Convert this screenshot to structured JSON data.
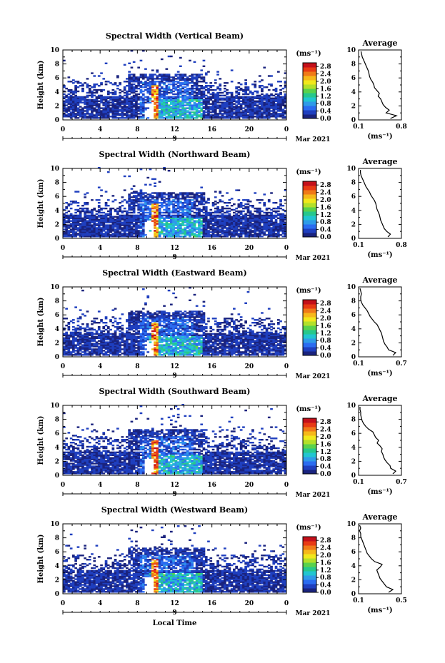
{
  "chart_data": [
    {
      "type": "heatmap",
      "title": "Spectral Width (Vertical Beam)",
      "ylabel": "Height (km)",
      "x_ticks": [
        "0",
        "4",
        "8",
        "12",
        "16",
        "20",
        "0"
      ],
      "x_date_label": "9",
      "x_month_label": "Mar 2021",
      "xlim": [
        0,
        24
      ],
      "ylim": [
        0,
        10
      ],
      "colorbar": {
        "unit": "(ms⁻¹)",
        "ticks": [
          "0.0",
          "0.4",
          "0.8",
          "1.2",
          "1.6",
          "2.0",
          "2.4",
          "2.8"
        ],
        "range": [
          0,
          3.0
        ]
      },
      "average": {
        "title": "Average",
        "xlabel": "(ms⁻¹)",
        "xticks": [
          "0.1",
          "0.8"
        ],
        "xlim": [
          0.1,
          0.8
        ],
        "height": [
          0.2,
          0.6,
          1.0,
          1.4,
          1.8,
          2.2,
          2.6,
          3.0,
          3.4,
          3.8,
          4.2,
          4.6,
          5.0,
          5.4,
          5.8,
          6.2,
          6.6,
          7.0,
          7.4,
          7.8,
          8.2,
          8.6,
          9.0,
          9.4,
          9.8
        ],
        "value": [
          0.62,
          0.72,
          0.55,
          0.6,
          0.54,
          0.5,
          0.48,
          0.46,
          0.42,
          0.44,
          0.4,
          0.36,
          0.35,
          0.33,
          0.3,
          0.28,
          0.27,
          0.26,
          0.24,
          0.22,
          0.2,
          0.18,
          0.16,
          0.15,
          0.14
        ]
      }
    },
    {
      "type": "heatmap",
      "title": "Spectral Width (Northward Beam)",
      "ylabel": "Height (km)",
      "x_ticks": [
        "0",
        "4",
        "8",
        "12",
        "16",
        "20",
        "0"
      ],
      "x_date_label": "9",
      "x_month_label": "Mar 2021",
      "xlim": [
        0,
        24
      ],
      "ylim": [
        0,
        10
      ],
      "colorbar": {
        "unit": "(ms⁻¹)",
        "ticks": [
          "0.0",
          "0.4",
          "0.8",
          "1.2",
          "1.6",
          "2.0",
          "2.4",
          "2.8"
        ],
        "range": [
          0,
          3.0
        ]
      },
      "average": {
        "title": "Average",
        "xlabel": "(ms⁻¹)",
        "xticks": [
          "0.1",
          "0.8"
        ],
        "xlim": [
          0.1,
          0.8
        ],
        "height": [
          0.2,
          0.6,
          1.0,
          1.4,
          1.8,
          2.2,
          2.6,
          3.0,
          3.4,
          3.8,
          4.2,
          4.6,
          5.0,
          5.4,
          5.8,
          6.2,
          6.6,
          7.0,
          7.4,
          7.8,
          8.2,
          8.6,
          9.0,
          9.4,
          9.8
        ],
        "value": [
          0.58,
          0.62,
          0.56,
          0.52,
          0.5,
          0.48,
          0.46,
          0.45,
          0.44,
          0.42,
          0.4,
          0.39,
          0.38,
          0.36,
          0.33,
          0.3,
          0.28,
          0.25,
          0.22,
          0.2,
          0.18,
          0.16,
          0.14,
          0.13,
          0.13
        ]
      }
    },
    {
      "type": "heatmap",
      "title": "Spectral Width (Eastward Beam)",
      "ylabel": "Height (km)",
      "x_ticks": [
        "0",
        "4",
        "8",
        "12",
        "16",
        "20",
        "0"
      ],
      "x_date_label": "9",
      "x_month_label": "Mar 2021",
      "xlim": [
        0,
        24
      ],
      "ylim": [
        0,
        10
      ],
      "colorbar": {
        "unit": "(ms⁻¹)",
        "ticks": [
          "0.0",
          "0.4",
          "0.8",
          "1.2",
          "1.6",
          "2.0",
          "2.4",
          "2.8"
        ],
        "range": [
          0,
          3.0
        ]
      },
      "average": {
        "title": "Average",
        "xlabel": "(ms⁻¹)",
        "xticks": [
          "0.1",
          "0.7"
        ],
        "xlim": [
          0.1,
          0.7
        ],
        "height": [
          0.2,
          0.6,
          1.0,
          1.4,
          1.8,
          2.2,
          2.6,
          3.0,
          3.4,
          3.8,
          4.2,
          4.6,
          5.0,
          5.4,
          5.8,
          6.2,
          6.6,
          7.0,
          7.4,
          7.8,
          8.2,
          8.6,
          9.0,
          9.4,
          9.8
        ],
        "value": [
          0.58,
          0.62,
          0.52,
          0.5,
          0.47,
          0.45,
          0.44,
          0.43,
          0.42,
          0.4,
          0.38,
          0.36,
          0.32,
          0.29,
          0.26,
          0.24,
          0.22,
          0.19,
          0.16,
          0.14,
          0.13,
          0.13,
          0.14,
          0.13,
          0.12
        ]
      }
    },
    {
      "type": "heatmap",
      "title": "Spectral Width (Southward Beam)",
      "ylabel": "Height (km)",
      "x_ticks": [
        "0",
        "4",
        "8",
        "12",
        "16",
        "20",
        "0"
      ],
      "x_date_label": "9",
      "x_month_label": "Mar 2021",
      "xlim": [
        0,
        24
      ],
      "ylim": [
        0,
        10
      ],
      "colorbar": {
        "unit": "(ms⁻¹)",
        "ticks": [
          "0.0",
          "0.4",
          "0.8",
          "1.2",
          "1.6",
          "2.0",
          "2.4",
          "2.8"
        ],
        "range": [
          0,
          3.0
        ]
      },
      "average": {
        "title": "Average",
        "xlabel": "(ms⁻¹)",
        "xticks": [
          "0.1",
          "0.7"
        ],
        "xlim": [
          0.1,
          0.7
        ],
        "height": [
          0.2,
          0.6,
          1.0,
          1.4,
          1.8,
          2.2,
          2.6,
          3.0,
          3.4,
          3.8,
          4.2,
          4.6,
          5.0,
          5.4,
          5.8,
          6.2,
          6.6,
          7.0,
          7.4,
          7.8,
          8.2,
          8.6,
          9.0,
          9.4,
          9.8
        ],
        "value": [
          0.58,
          0.62,
          0.55,
          0.54,
          0.5,
          0.47,
          0.45,
          0.44,
          0.42,
          0.43,
          0.4,
          0.36,
          0.38,
          0.34,
          0.32,
          0.3,
          0.24,
          0.2,
          0.17,
          0.15,
          0.14,
          0.13,
          0.13,
          0.12,
          0.12
        ]
      }
    },
    {
      "type": "heatmap",
      "title": "Spectral Width (Westward Beam)",
      "ylabel": "Height (km)",
      "x_ticks": [
        "0",
        "4",
        "8",
        "12",
        "16",
        "20",
        "0"
      ],
      "x_date_label": "9",
      "x_month_label": "Mar 2021",
      "xlabel": "Local Time",
      "xlim": [
        0,
        24
      ],
      "ylim": [
        0,
        10
      ],
      "colorbar": {
        "unit": "(ms⁻¹)",
        "ticks": [
          "0.0",
          "0.4",
          "0.8",
          "1.2",
          "1.6",
          "2.0",
          "2.4",
          "2.8"
        ],
        "range": [
          0,
          3.0
        ]
      },
      "average": {
        "title": "Average",
        "xlabel": "(ms⁻¹)",
        "xticks": [
          "0.1",
          "0.5"
        ],
        "xlim": [
          0.1,
          0.5
        ],
        "height": [
          0.2,
          0.6,
          1.0,
          1.4,
          1.8,
          2.2,
          2.6,
          3.0,
          3.4,
          3.8,
          4.2,
          4.6,
          5.0,
          5.4,
          5.8,
          6.2,
          6.6,
          7.0,
          7.4,
          7.8,
          8.2,
          8.6,
          9.0,
          9.4,
          9.8
        ],
        "value": [
          0.38,
          0.42,
          0.36,
          0.34,
          0.32,
          0.3,
          0.29,
          0.28,
          0.27,
          0.3,
          0.32,
          0.25,
          0.22,
          0.2,
          0.18,
          0.17,
          0.16,
          0.15,
          0.14,
          0.13,
          0.12,
          0.12,
          0.11,
          0.12,
          0.11
        ]
      }
    }
  ]
}
